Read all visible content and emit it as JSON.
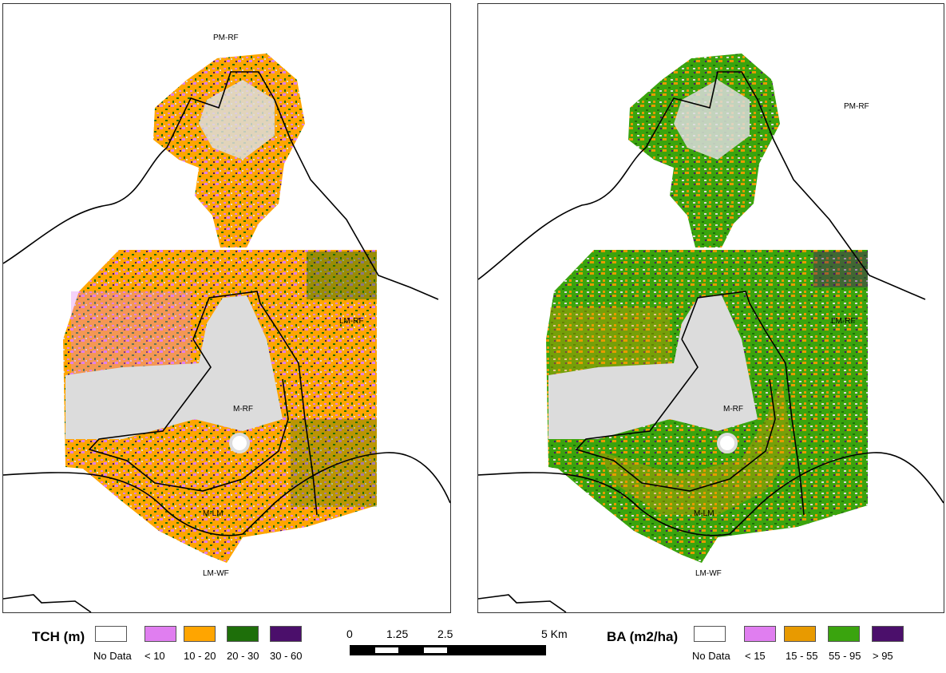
{
  "left_map": {
    "variable": "TCH",
    "labels": {
      "pmrf": "PM-RF",
      "lmrf": "LM-RF",
      "mrf": "M-RF",
      "mlm": "M-LM",
      "lmwf": "LM-WF"
    }
  },
  "right_map": {
    "variable": "BA",
    "labels": {
      "pmrf": "PM-RF",
      "lmrf": "LM-RF",
      "mrf": "M-RF",
      "mlm": "M-LM",
      "lmwf": "LM-WF"
    }
  },
  "legend_tch": {
    "title": "TCH (m)",
    "classes": [
      {
        "label": "No Data",
        "color": "#ffffff"
      },
      {
        "label": "< 10",
        "color": "#e07ef0"
      },
      {
        "label": "10 - 20",
        "color": "#ffa500"
      },
      {
        "label": "20 - 30",
        "color": "#1e6f0a"
      },
      {
        "label": "30 - 60",
        "color": "#4b0f6b"
      }
    ]
  },
  "legend_ba": {
    "title": "BA (m2/ha)",
    "classes": [
      {
        "label": "No Data",
        "color": "#ffffff"
      },
      {
        "label": "< 15",
        "color": "#e07ef0"
      },
      {
        "label": "15 - 55",
        "color": "#e89a00"
      },
      {
        "label": "55 - 95",
        "color": "#3aa40e"
      },
      {
        "label": "> 95",
        "color": "#4b0f6b"
      }
    ]
  },
  "scale": {
    "ticks": [
      "0",
      "1.25",
      "2.5",
      "5 Km"
    ]
  },
  "colors": {
    "nodata_gray": "#dcdcdc",
    "boundary": "#000000"
  }
}
